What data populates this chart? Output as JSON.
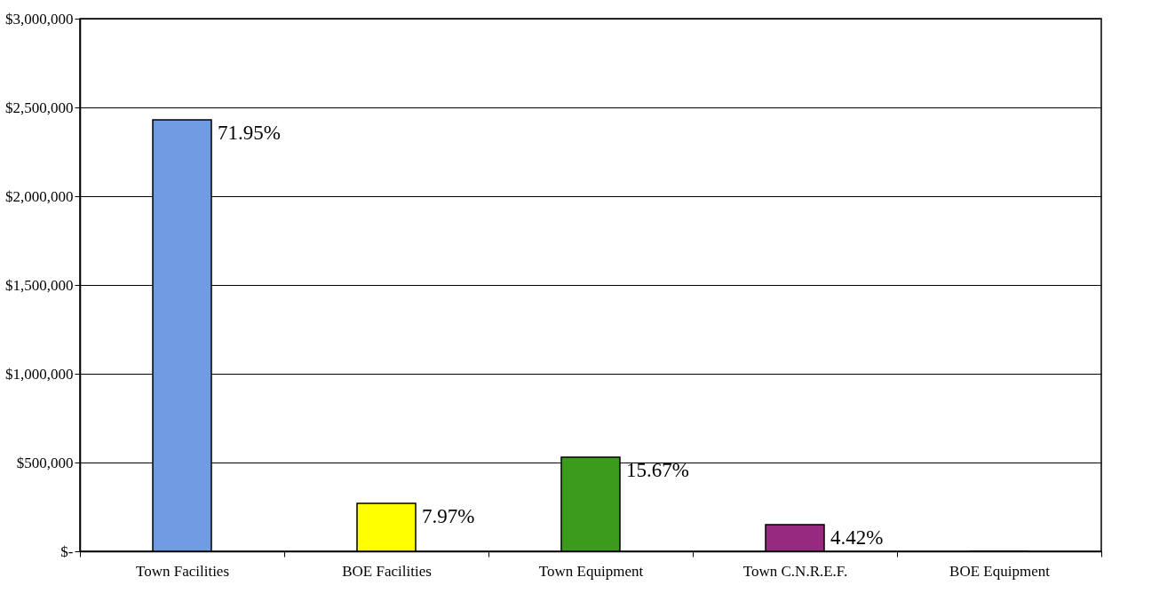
{
  "chart_data": {
    "type": "bar",
    "categories": [
      "Town Facilities",
      "BOE Facilities",
      "Town Equipment",
      "Town C.N.R.E.F.",
      "BOE Equipment"
    ],
    "values": [
      2430000,
      270000,
      530000,
      150000,
      0
    ],
    "colors": [
      "#6f9be0",
      "#ffff00",
      "#3c9a1c",
      "#972a80",
      "#c0c0c0"
    ],
    "annotations": [
      {
        "text": "71.95%",
        "x": "Town Facilities",
        "y": 2430000
      },
      {
        "text": "7.97%",
        "x": "BOE Facilities",
        "y": 270000
      },
      {
        "text": "15.67%",
        "x": "Town Equipment",
        "y": 530000
      },
      {
        "text": "4.42%",
        "x": "Town C.N.R.E.F.",
        "y": 150000
      }
    ],
    "ylim": [
      0,
      3000000
    ],
    "yticks": [
      {
        "value": 0,
        "label": "$-"
      },
      {
        "value": 500000,
        "label": "$500,000"
      },
      {
        "value": 1000000,
        "label": "$1,000,000"
      },
      {
        "value": 1500000,
        "label": "$1,500,000"
      },
      {
        "value": 2000000,
        "label": "$2,000,000"
      },
      {
        "value": 2500000,
        "label": "$2,500,000"
      },
      {
        "value": 3000000,
        "label": "$3,000,000"
      }
    ],
    "grid": "y"
  }
}
